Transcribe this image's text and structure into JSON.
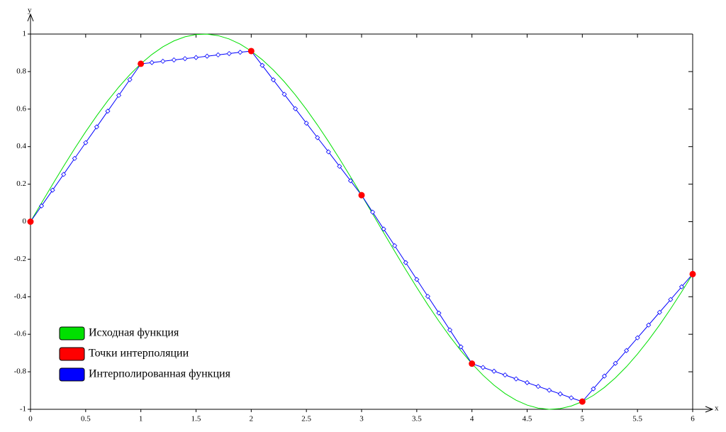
{
  "chart_data": {
    "type": "line",
    "x_label": "x",
    "y_label": "y",
    "xlim": [
      0,
      6
    ],
    "ylim": [
      -1,
      1
    ],
    "xticks": [
      0,
      0.5,
      1,
      1.5,
      2,
      2.5,
      3,
      3.5,
      4,
      4.5,
      5,
      5.5,
      6
    ],
    "yticks": [
      -1,
      -0.8,
      -0.6,
      -0.4,
      -0.2,
      0,
      0.2,
      0.4,
      0.6,
      0.8,
      1
    ],
    "legend": "lower left",
    "series": [
      {
        "name": "Исходная функция",
        "color": "#00e000",
        "style": "curve",
        "x": [
          0,
          0.1,
          0.2,
          0.3,
          0.4,
          0.5,
          0.6,
          0.7,
          0.8,
          0.9,
          1,
          1.1,
          1.2,
          1.3,
          1.4,
          1.5,
          1.6,
          1.7,
          1.8,
          1.9,
          2,
          2.1,
          2.2,
          2.3,
          2.4,
          2.5,
          2.6,
          2.7,
          2.8,
          2.9,
          3,
          3.1,
          3.2,
          3.3,
          3.4,
          3.5,
          3.6,
          3.7,
          3.8,
          3.9,
          4,
          4.1,
          4.2,
          4.3,
          4.4,
          4.5,
          4.6,
          4.7,
          4.8,
          4.9,
          5,
          5.1,
          5.2,
          5.3,
          5.4,
          5.5,
          5.6,
          5.7,
          5.8,
          5.9,
          6
        ],
        "values": [
          0,
          0.0998,
          0.1987,
          0.2955,
          0.3894,
          0.4794,
          0.5646,
          0.6442,
          0.7174,
          0.7833,
          0.8415,
          0.8912,
          0.932,
          0.9636,
          0.9854,
          0.9975,
          0.9996,
          0.9917,
          0.9738,
          0.9463,
          0.9093,
          0.8632,
          0.8085,
          0.7457,
          0.6755,
          0.5985,
          0.5155,
          0.4274,
          0.335,
          0.2392,
          0.1411,
          0.0416,
          -0.0584,
          -0.1577,
          -0.2555,
          -0.3508,
          -0.4425,
          -0.5298,
          -0.6119,
          -0.6878,
          -0.7568,
          -0.8183,
          -0.8716,
          -0.9162,
          -0.9516,
          -0.9775,
          -0.9937,
          -0.9999,
          -0.9962,
          -0.9825,
          -0.9589,
          -0.9258,
          -0.8835,
          -0.8323,
          -0.7728,
          -0.7055,
          -0.6313,
          -0.5507,
          -0.4646,
          -0.3739,
          -0.2794
        ]
      },
      {
        "name": "Точки интерполяции",
        "color": "#ff0000",
        "style": "points",
        "x": [
          0,
          1,
          2,
          3,
          4,
          5,
          6
        ],
        "values": [
          0,
          0.8415,
          0.9093,
          0.1411,
          -0.7568,
          -0.9589,
          -0.2794
        ]
      },
      {
        "name": "Интерполированная функция",
        "color": "#0000ff",
        "style": "diamonds",
        "x": [
          0,
          0.1,
          0.2,
          0.3,
          0.4,
          0.5,
          0.6,
          0.7,
          0.8,
          0.9,
          1,
          1.1,
          1.2,
          1.3,
          1.4,
          1.5,
          1.6,
          1.7,
          1.8,
          1.9,
          2,
          2.1,
          2.2,
          2.3,
          2.4,
          2.5,
          2.6,
          2.7,
          2.8,
          2.9,
          3,
          3.1,
          3.2,
          3.3,
          3.4,
          3.5,
          3.6,
          3.7,
          3.8,
          3.9,
          4,
          4.1,
          4.2,
          4.3,
          4.4,
          4.5,
          4.6,
          4.7,
          4.8,
          4.9,
          5,
          5.1,
          5.2,
          5.3,
          5.4,
          5.5,
          5.6,
          5.7,
          5.8,
          5.9,
          6
        ],
        "values": [
          0,
          0.084,
          0.168,
          0.252,
          0.337,
          0.421,
          0.505,
          0.589,
          0.673,
          0.757,
          0.841,
          0.848,
          0.855,
          0.862,
          0.869,
          0.875,
          0.882,
          0.889,
          0.896,
          0.903,
          0.909,
          0.833,
          0.756,
          0.679,
          0.602,
          0.525,
          0.448,
          0.372,
          0.295,
          0.218,
          0.141,
          0.051,
          -0.039,
          -0.128,
          -0.218,
          -0.308,
          -0.398,
          -0.487,
          -0.577,
          -0.667,
          -0.757,
          -0.777,
          -0.797,
          -0.817,
          -0.838,
          -0.858,
          -0.878,
          -0.898,
          -0.918,
          -0.939,
          -0.959,
          -0.891,
          -0.823,
          -0.755,
          -0.687,
          -0.619,
          -0.551,
          -0.483,
          -0.415,
          -0.347,
          -0.279
        ]
      }
    ]
  }
}
